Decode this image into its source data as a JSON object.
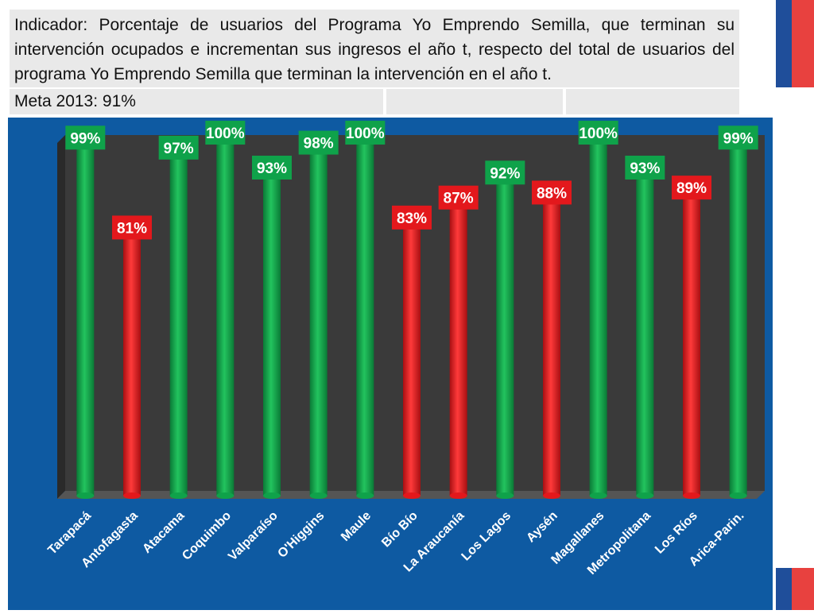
{
  "header": {
    "indicator_text": "Indicador: Porcentaje de usuarios del Programa Yo Emprendo Semilla, que terminan su intervención ocupados e incrementan sus ingresos el año t, respecto del total de usuarios del programa Yo Emprendo Semilla que terminan la intervención en el año t.",
    "meta_label": "Meta 2013: 91%"
  },
  "colors": {
    "above_goal": "#0fa24a",
    "below_goal": "#e3181c",
    "panel": "#0e5aa2",
    "plot_bg": "#3a3a3a",
    "label_text": "#ffffff"
  },
  "chart_data": {
    "type": "bar",
    "title": "",
    "xlabel": "",
    "ylabel": "",
    "goal": 91,
    "ylim": [
      0,
      100
    ],
    "categories": [
      "Tarapacá",
      "Antofagasta",
      "Atacama",
      "Coquimbo",
      "Valparaíso",
      "O'Higgins",
      "Maule",
      "Bío Bío",
      "La Araucanía",
      "Los Lagos",
      "Aysén",
      "Magallanes",
      "Metropolitana",
      "Los Ríos",
      "Arica-Parin."
    ],
    "values": [
      99,
      81,
      97,
      100,
      93,
      98,
      100,
      83,
      87,
      92,
      88,
      100,
      93,
      89,
      99
    ],
    "data_labels": [
      "99%",
      "81%",
      "97%",
      "100%",
      "93%",
      "98%",
      "100%",
      "83%",
      "87%",
      "92%",
      "88%",
      "100%",
      "93%",
      "89%",
      "99%"
    ]
  }
}
